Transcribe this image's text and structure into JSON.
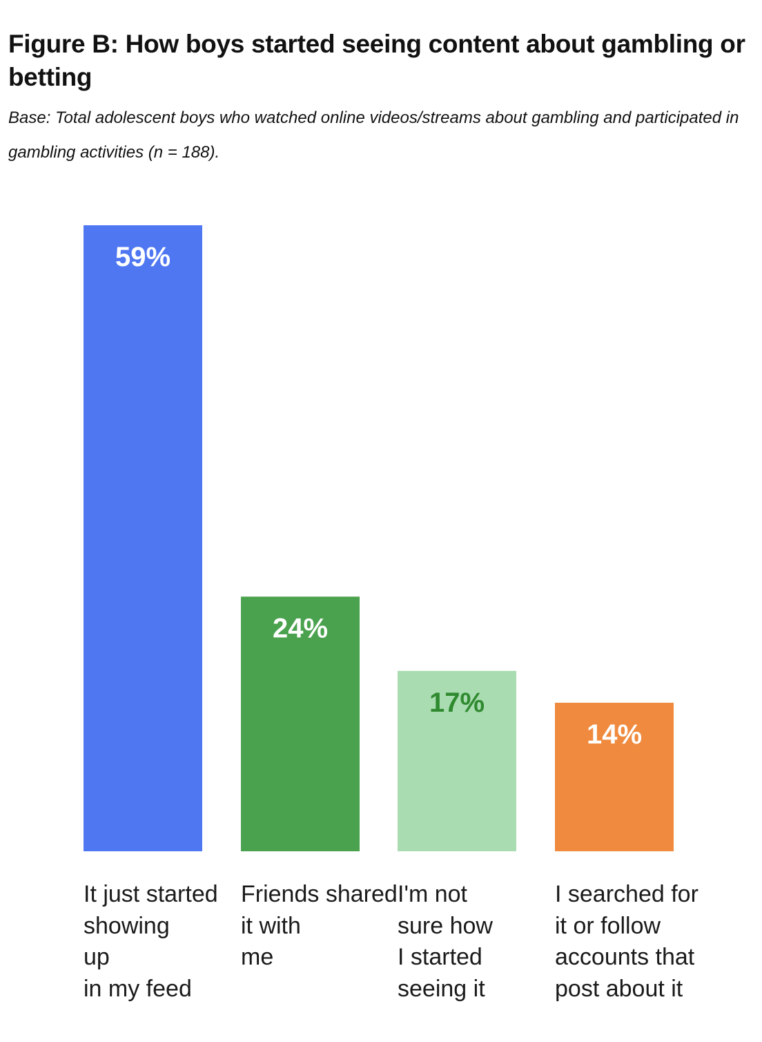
{
  "header": {
    "title": "Figure B: How boys started seeing content about gambling or betting",
    "subtitle": "Base: Total adolescent boys who watched online videos/streams about gambling and participated in gambling activities (n = 188)."
  },
  "chart_data": {
    "type": "bar",
    "categories": [
      "It just started showing up in my feed",
      "Friends shared it with me",
      "I'm not sure how I started seeing it",
      "I searched for it or follow accounts that post about it"
    ],
    "values": [
      59,
      24,
      17,
      14
    ],
    "value_labels": [
      "59%",
      "24%",
      "17%",
      "14%"
    ],
    "bar_colors": [
      "#4f77f2",
      "#4aa24e",
      "#aadcb1",
      "#ef8a3e"
    ],
    "value_label_colors": [
      "#ffffff",
      "#ffffff",
      "#2f8a2f",
      "#ffffff"
    ],
    "ylim": [
      0,
      59
    ],
    "grid": false,
    "legend": "none"
  }
}
